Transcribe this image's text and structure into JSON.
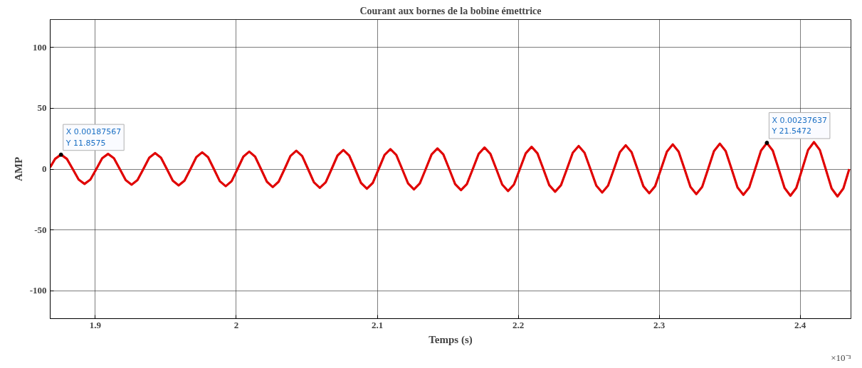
{
  "chart_data": {
    "type": "line",
    "title": "Courant aux bornes de la bobine émettrice",
    "xlabel": "Temps (s)",
    "ylabel": "AMP",
    "xlim": [
      1.868,
      2.436
    ],
    "ylim": [
      -123,
      123
    ],
    "xticks": [
      1.9,
      2,
      2.1,
      2.2,
      2.3,
      2.4
    ],
    "yticks": [
      -100,
      -50,
      0,
      50,
      100
    ],
    "grid": true,
    "marker": "none",
    "line_style": "solid",
    "annotations": [
      {
        "text": "X 0.00187567\nY 11.8575",
        "x": 1.87567,
        "y": 11.8575
      },
      {
        "text": "X 0.00237637\nY 21.5472",
        "x": 2.37637,
        "y": 21.5472
      },
      "×10⁻³"
    ],
    "series": [
      {
        "color": "#e00000",
        "x": [
          1.868,
          1.8715,
          1.87567,
          1.87984,
          1.88402,
          1.88819,
          1.89236,
          1.89653,
          1.90071,
          1.90488,
          1.90905,
          1.91322,
          1.9174,
          1.92157,
          1.92574,
          1.92991,
          1.93409,
          1.93826,
          1.94243,
          1.9466,
          1.95078,
          1.95495,
          1.95912,
          1.96329,
          1.96747,
          1.97164,
          1.97581,
          1.97998,
          1.98416,
          1.98833,
          1.9925,
          1.99667,
          2.00085,
          2.00502,
          2.00919,
          2.01336,
          2.01754,
          2.02171,
          2.02588,
          2.03005,
          2.03423,
          2.0384,
          2.04257,
          2.04674,
          2.05092,
          2.05509,
          2.05926,
          2.06343,
          2.06761,
          2.07178,
          2.07595,
          2.08012,
          2.0843,
          2.08847,
          2.09264,
          2.09681,
          2.10099,
          2.10516,
          2.10933,
          2.1135,
          2.11768,
          2.12185,
          2.12602,
          2.13019,
          2.13437,
          2.13854,
          2.14271,
          2.14688,
          2.15106,
          2.15523,
          2.1594,
          2.16357,
          2.16775,
          2.17192,
          2.17609,
          2.18026,
          2.18444,
          2.18861,
          2.19278,
          2.19695,
          2.20113,
          2.2053,
          2.20947,
          2.21364,
          2.21782,
          2.22199,
          2.22616,
          2.23033,
          2.23451,
          2.23868,
          2.24285,
          2.24702,
          2.2512,
          2.25537,
          2.25954,
          2.26371,
          2.26789,
          2.27206,
          2.27623,
          2.2804,
          2.28458,
          2.28875,
          2.29292,
          2.29709,
          2.30127,
          2.30544,
          2.30961,
          2.31378,
          2.31796,
          2.32213,
          2.3263,
          2.33047,
          2.33465,
          2.33882,
          2.34299,
          2.34716,
          2.35134,
          2.35551,
          2.35968,
          2.36385,
          2.36803,
          2.3722,
          2.37637,
          2.38054,
          2.38472,
          2.38889,
          2.39306,
          2.39723,
          2.40141,
          2.40558,
          2.40975,
          2.41392,
          2.4181,
          2.42227,
          2.42644,
          2.43061,
          2.43479
        ],
        "values": [
          1.5,
          8.4,
          11.9,
          8.4,
          0,
          -8.6,
          -12.2,
          -8.6,
          0,
          8.9,
          12.5,
          8.9,
          0,
          -9.1,
          -12.8,
          -9.1,
          0,
          9.3,
          13.2,
          9.3,
          0,
          -9.5,
          -13.5,
          -9.5,
          0,
          9.8,
          13.8,
          9.8,
          0,
          -10.0,
          -14.1,
          -10.0,
          0,
          10.2,
          14.4,
          10.2,
          0,
          -10.4,
          -14.8,
          -10.4,
          0,
          10.7,
          15.1,
          10.7,
          0,
          -10.9,
          -15.4,
          -10.9,
          0,
          11.1,
          15.7,
          11.1,
          0,
          -11.4,
          -16.1,
          -11.4,
          0,
          11.6,
          16.4,
          11.6,
          0,
          -11.8,
          -16.7,
          -11.8,
          0,
          12.0,
          17.0,
          12.0,
          0,
          -12.3,
          -17.3,
          -12.3,
          0,
          12.5,
          17.7,
          12.5,
          0,
          -12.7,
          -18.0,
          -12.7,
          0,
          12.9,
          18.3,
          12.9,
          0,
          -13.2,
          -18.6,
          -13.2,
          0,
          13.4,
          19.0,
          13.4,
          0,
          -13.6,
          -19.3,
          -13.6,
          0,
          13.9,
          19.6,
          13.9,
          0,
          -14.1,
          -19.9,
          -14.1,
          0,
          14.3,
          20.3,
          14.3,
          0,
          -14.6,
          -20.6,
          -14.6,
          0,
          14.8,
          20.9,
          14.8,
          0,
          -15.0,
          -21.2,
          -15.0,
          0,
          15.2,
          21.5,
          15.2,
          0,
          -15.5,
          -21.9,
          -15.5,
          0,
          15.7,
          22.2,
          15.7,
          0,
          -15.9,
          -22.5,
          -15.9,
          0
        ]
      }
    ]
  }
}
